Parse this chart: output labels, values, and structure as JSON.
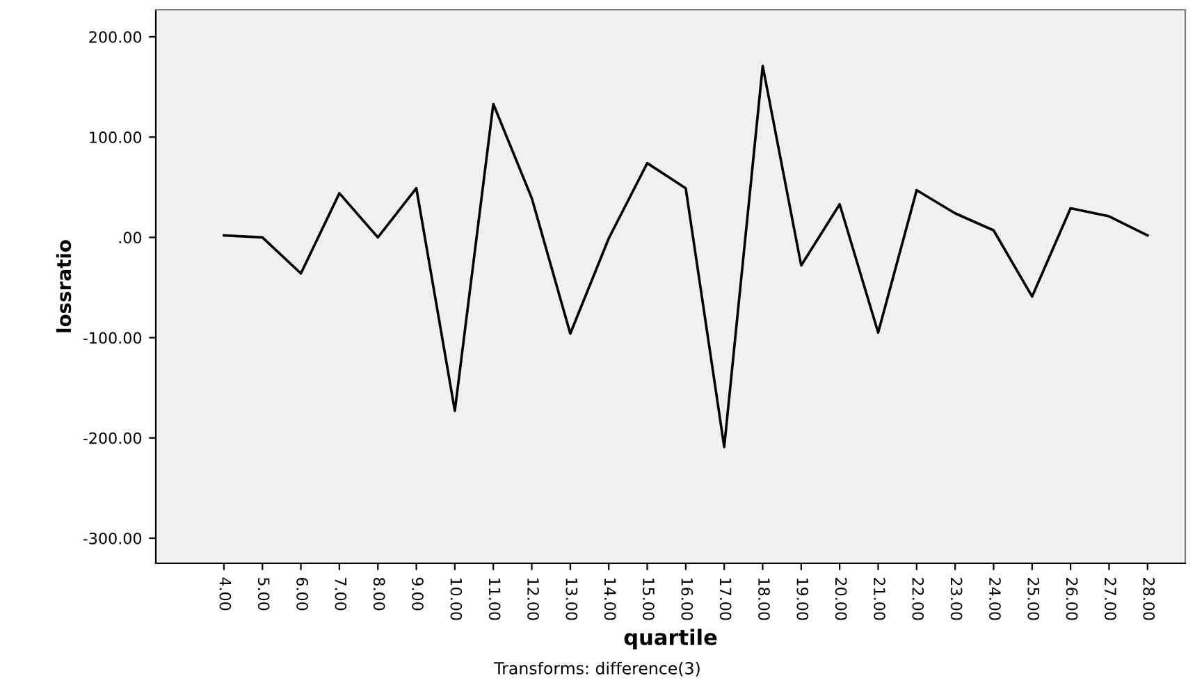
{
  "chart_data": {
    "type": "line",
    "xlabel": "quartile",
    "ylabel": "lossratio",
    "categories": [
      "4.00",
      "5.00",
      "6.00",
      "7.00",
      "8.00",
      "9.00",
      "10.00",
      "11.00",
      "12.00",
      "13.00",
      "14.00",
      "15.00",
      "16.00",
      "17.00",
      "18.00",
      "19.00",
      "20.00",
      "21.00",
      "22.00",
      "23.00",
      "24.00",
      "25.00",
      "26.00",
      "27.00",
      "28.00"
    ],
    "series": [
      {
        "color": "#000000",
        "values": [
          2,
          0,
          -36,
          44,
          0,
          49,
          -173,
          133,
          39,
          -96,
          -1,
          74,
          49,
          -209,
          171,
          -28,
          33,
          -95,
          47,
          24,
          7,
          -59,
          29,
          21,
          2
        ]
      }
    ],
    "ylim": [
      -325,
      227
    ],
    "yticks": [
      {
        "value": -300,
        "label": "-300.00"
      },
      {
        "value": -200,
        "label": "-200.00"
      },
      {
        "value": -100,
        "label": "-100.00"
      },
      {
        "value": 0,
        "label": ".00"
      },
      {
        "value": 100,
        "label": "100.00"
      },
      {
        "value": 200,
        "label": "200.00"
      }
    ],
    "grid": false,
    "legend": false,
    "marker": "none",
    "line_style": "solid",
    "annotations": [
      "Transforms: difference(3)"
    ]
  }
}
